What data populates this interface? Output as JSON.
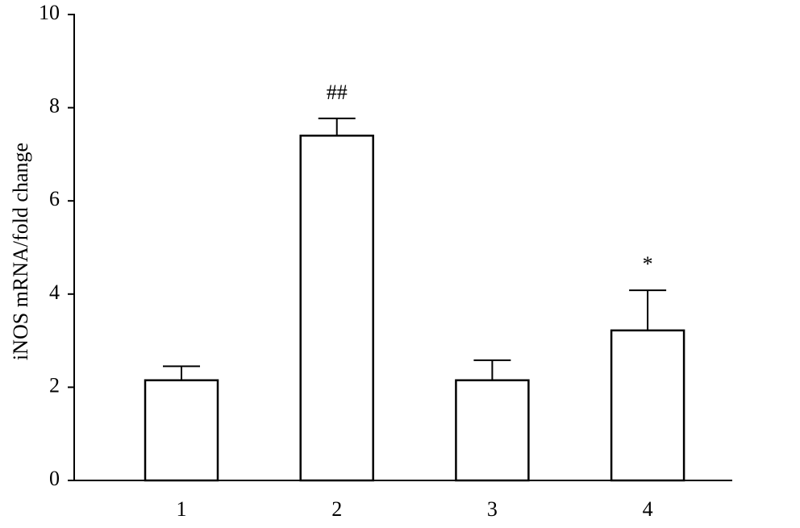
{
  "chart_data": {
    "type": "bar",
    "y_label": "iNOS mRNA/fold change",
    "categories": [
      "1",
      "2",
      "3",
      "4"
    ],
    "values": [
      2.15,
      7.4,
      2.15,
      3.22
    ],
    "errors": [
      0.3,
      0.37,
      0.43,
      0.86
    ],
    "annotations": [
      null,
      "##",
      null,
      "*"
    ],
    "color": "#ffffff",
    "ylim": [
      0,
      10
    ],
    "yticks": [
      0,
      2,
      4,
      6,
      8,
      10
    ],
    "grid": false
  }
}
